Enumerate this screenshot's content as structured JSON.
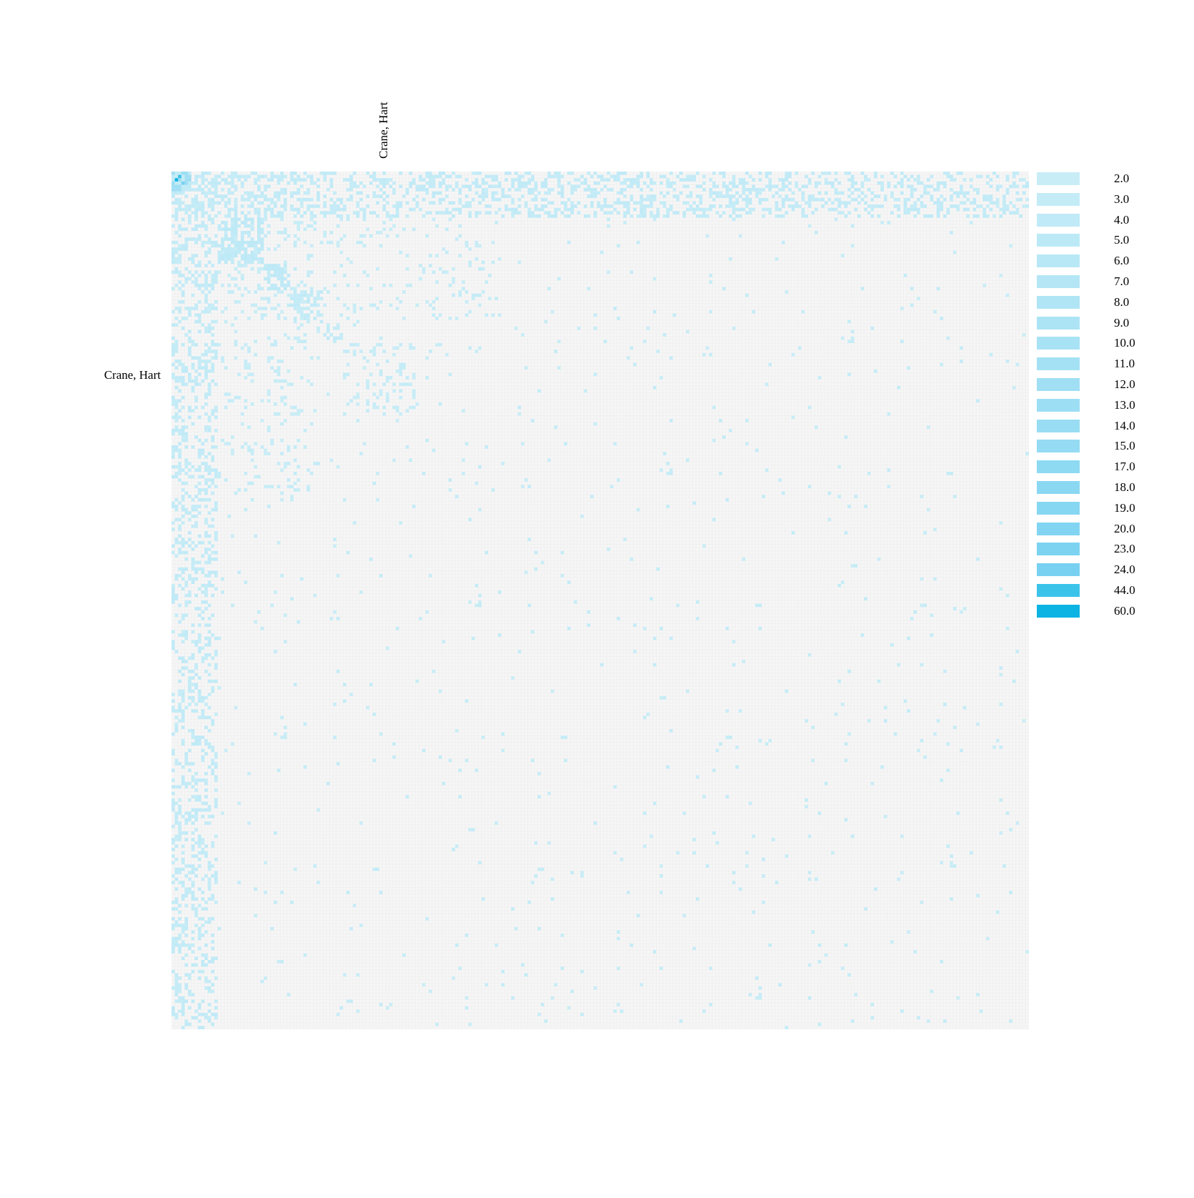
{
  "chart_data": {
    "type": "heatmap",
    "title": "",
    "row_label_shown": "Crane, Hart",
    "column_label_shown": "Crane, Hart",
    "grid_size": 260,
    "background_color": "#f6f6f6",
    "grid_line_color": "#ebebeb",
    "color_low": "#c6ecf7",
    "color_high": "#0cb4e3",
    "legend": [
      {
        "label": "2.0",
        "color": "#c8edf7"
      },
      {
        "label": "3.0",
        "color": "#c4ecf7"
      },
      {
        "label": "4.0",
        "color": "#c0eaf7"
      },
      {
        "label": "5.0",
        "color": "#bce9f6"
      },
      {
        "label": "6.0",
        "color": "#b8e8f6"
      },
      {
        "label": "7.0",
        "color": "#b4e6f6"
      },
      {
        "label": "8.0",
        "color": "#b0e5f5"
      },
      {
        "label": "9.0",
        "color": "#ace4f5"
      },
      {
        "label": "10.0",
        "color": "#a8e2f5"
      },
      {
        "label": "11.0",
        "color": "#a4e1f4"
      },
      {
        "label": "12.0",
        "color": "#a0dff4"
      },
      {
        "label": "13.0",
        "color": "#9cdef4"
      },
      {
        "label": "14.0",
        "color": "#98ddf3"
      },
      {
        "label": "15.0",
        "color": "#94dbf3"
      },
      {
        "label": "17.0",
        "color": "#8edaf3"
      },
      {
        "label": "18.0",
        "color": "#8ad8f2"
      },
      {
        "label": "19.0",
        "color": "#86d7f2"
      },
      {
        "label": "20.0",
        "color": "#82d5f2"
      },
      {
        "label": "23.0",
        "color": "#7cd3f1"
      },
      {
        "label": "24.0",
        "color": "#78d1f1"
      },
      {
        "label": "44.0",
        "color": "#3cc3ea"
      },
      {
        "label": "60.0",
        "color": "#0cb4e3"
      }
    ],
    "dense_blocks": [
      {
        "rows": [
          0,
          14
        ],
        "cols": [
          0,
          260
        ],
        "density": 0.35,
        "value": 3
      },
      {
        "rows": [
          0,
          260
        ],
        "cols": [
          0,
          14
        ],
        "density": 0.3,
        "value": 3
      },
      {
        "rows": [
          0,
          6
        ],
        "cols": [
          0,
          6
        ],
        "density": 0.9,
        "value": 12
      },
      {
        "rows": [
          14,
          28
        ],
        "cols": [
          14,
          28
        ],
        "density": 0.55,
        "value": 4
      },
      {
        "rows": [
          28,
          36
        ],
        "cols": [
          28,
          36
        ],
        "density": 0.6,
        "value": 4
      },
      {
        "rows": [
          36,
          46
        ],
        "cols": [
          36,
          46
        ],
        "density": 0.45,
        "value": 3
      },
      {
        "rows": [
          46,
          52
        ],
        "cols": [
          46,
          52
        ],
        "density": 0.4,
        "value": 3
      },
      {
        "rows": [
          52,
          74
        ],
        "cols": [
          52,
          74
        ],
        "density": 0.18,
        "value": 2
      },
      {
        "rows": [
          0,
          100
        ],
        "cols": [
          14,
          45
        ],
        "density": 0.08,
        "value": 2
      },
      {
        "rows": [
          14,
          45
        ],
        "cols": [
          0,
          100
        ],
        "density": 0.08,
        "value": 2
      },
      {
        "rows": [
          0,
          260
        ],
        "cols": [
          0,
          260
        ],
        "density": 0.012,
        "value": 2
      }
    ]
  }
}
